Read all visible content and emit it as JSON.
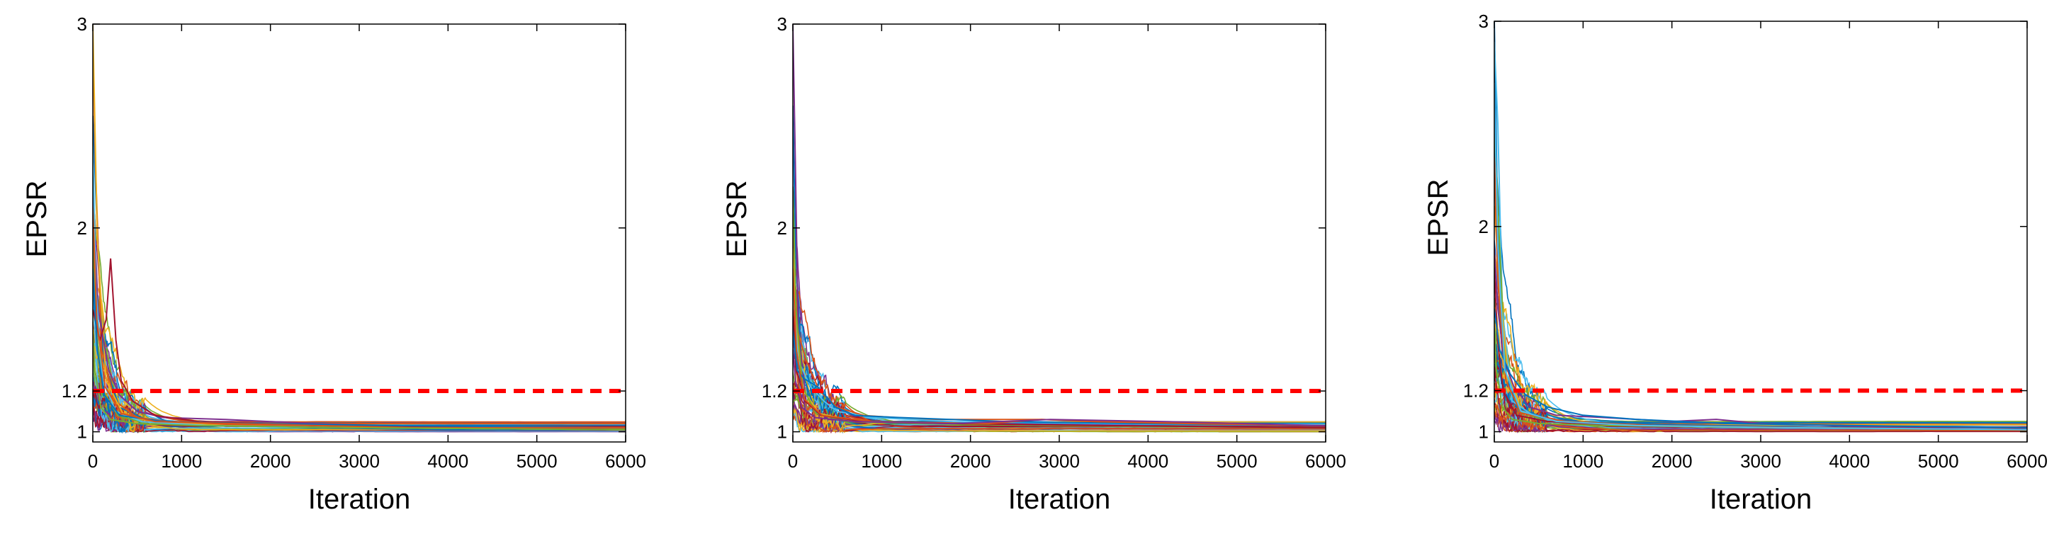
{
  "chart_data": [
    {
      "type": "line",
      "xlabel": "Iteration",
      "ylabel": "EPSR",
      "xlim": [
        0,
        6000
      ],
      "ylim": [
        0.95,
        3.0
      ],
      "xticks": [
        "0",
        "1000",
        "2000",
        "3000",
        "4000",
        "5000",
        "6000"
      ],
      "yticks": [
        "1",
        "1.2",
        "2",
        "3"
      ],
      "threshold": {
        "value": 1.2,
        "color": "#ff0000",
        "style": "dashed"
      },
      "grid": false,
      "series_note": "many overlapping chains converging toward 1",
      "seed": 11,
      "series": [
        {
          "color": "#0072bd",
          "x": [
            0,
            40,
            120,
            300,
            600,
            1200,
            2500,
            4000,
            6000
          ],
          "y": [
            2.55,
            2.1,
            1.35,
            1.12,
            1.06,
            1.04,
            1.02,
            1.01,
            1.01
          ]
        },
        {
          "color": "#d95319",
          "x": [
            0,
            30,
            100,
            250,
            500,
            1000,
            2000,
            4000,
            6000
          ],
          "y": [
            2.9,
            2.3,
            1.4,
            1.15,
            1.07,
            1.04,
            1.03,
            1.02,
            1.01
          ]
        },
        {
          "color": "#edb120",
          "x": [
            0,
            50,
            150,
            350,
            700,
            1500,
            3000,
            6000
          ],
          "y": [
            3.0,
            1.95,
            1.25,
            1.08,
            1.05,
            1.03,
            1.02,
            1.01
          ]
        },
        {
          "color": "#7e2f8e",
          "x": [
            0,
            60,
            180,
            300,
            500,
            800,
            1500,
            2500,
            4000,
            6000
          ],
          "y": [
            2.2,
            1.6,
            1.3,
            1.18,
            1.1,
            1.07,
            1.06,
            1.04,
            1.02,
            1.01
          ]
        },
        {
          "color": "#77ac30",
          "x": [
            0,
            40,
            120,
            280,
            600,
            1400,
            3000,
            6000
          ],
          "y": [
            2.0,
            1.5,
            1.2,
            1.08,
            1.04,
            1.03,
            1.02,
            1.01
          ]
        },
        {
          "color": "#4dbeee",
          "x": [
            0,
            35,
            110,
            260,
            550,
            1300,
            3000,
            6000
          ],
          "y": [
            2.4,
            1.7,
            1.25,
            1.1,
            1.05,
            1.03,
            1.02,
            1.01
          ]
        },
        {
          "color": "#a2142f",
          "x": [
            0,
            80,
            150,
            200,
            260,
            320,
            450,
            700,
            1200,
            2500,
            6000
          ],
          "y": [
            1.6,
            1.45,
            1.55,
            1.85,
            1.45,
            1.25,
            1.15,
            1.08,
            1.05,
            1.03,
            1.01
          ]
        },
        {
          "color": "#0072bd",
          "x": [
            0,
            50,
            130,
            300,
            800,
            1800,
            3500,
            6000
          ],
          "y": [
            1.8,
            1.4,
            1.18,
            1.08,
            1.05,
            1.04,
            1.03,
            1.02
          ]
        },
        {
          "color": "#d95319",
          "x": [
            0,
            45,
            140,
            320,
            700,
            1600,
            3600,
            6000
          ],
          "y": [
            2.1,
            1.55,
            1.22,
            1.09,
            1.05,
            1.04,
            1.02,
            1.02
          ]
        },
        {
          "color": "#77ac30",
          "x": [
            0,
            25,
            90,
            200,
            500,
            1200,
            3000,
            6000
          ],
          "y": [
            1.5,
            1.3,
            1.12,
            1.06,
            1.04,
            1.03,
            1.02,
            1.01
          ]
        }
      ]
    },
    {
      "type": "line",
      "xlabel": "Iteration",
      "ylabel": "EPSR",
      "xlim": [
        0,
        6000
      ],
      "ylim": [
        0.95,
        3.0
      ],
      "xticks": [
        "0",
        "1000",
        "2000",
        "3000",
        "4000",
        "5000",
        "6000"
      ],
      "yticks": [
        "1",
        "1.2",
        "2",
        "3"
      ],
      "threshold": {
        "value": 1.2,
        "color": "#ff0000",
        "style": "dashed"
      },
      "grid": false,
      "series_note": "many overlapping chains converging toward 1",
      "seed": 23,
      "series": [
        {
          "color": "#0072bd",
          "x": [
            0,
            30,
            100,
            250,
            600,
            1200,
            2500,
            4000,
            6000
          ],
          "y": [
            2.6,
            1.9,
            1.3,
            1.1,
            1.05,
            1.05,
            1.04,
            1.03,
            1.02
          ]
        },
        {
          "color": "#7e2f8e",
          "x": [
            0,
            25,
            60,
            150,
            400,
            900,
            2000,
            4000,
            6000
          ],
          "y": [
            3.0,
            2.4,
            1.5,
            1.15,
            1.06,
            1.05,
            1.04,
            1.03,
            1.02
          ]
        },
        {
          "color": "#d95319",
          "x": [
            0,
            50,
            150,
            300,
            500,
            800,
            1500,
            2800,
            4500,
            6000
          ],
          "y": [
            2.0,
            1.5,
            1.35,
            1.2,
            1.12,
            1.08,
            1.06,
            1.06,
            1.04,
            1.03
          ]
        },
        {
          "color": "#edb120",
          "x": [
            0,
            40,
            120,
            300,
            700,
            1500,
            3000,
            6000
          ],
          "y": [
            1.9,
            1.5,
            1.2,
            1.09,
            1.05,
            1.04,
            1.03,
            1.02
          ]
        },
        {
          "color": "#4dbeee",
          "x": [
            0,
            60,
            200,
            350,
            500,
            900,
            1800,
            3500,
            6000
          ],
          "y": [
            1.7,
            1.35,
            1.22,
            1.15,
            1.1,
            1.07,
            1.05,
            1.04,
            1.03
          ]
        },
        {
          "color": "#77ac30",
          "x": [
            0,
            35,
            110,
            260,
            600,
            1400,
            3000,
            6000
          ],
          "y": [
            2.2,
            1.6,
            1.22,
            1.09,
            1.05,
            1.04,
            1.03,
            1.02
          ]
        },
        {
          "color": "#a2142f",
          "x": [
            0,
            45,
            140,
            320,
            800,
            1800,
            3600,
            6000
          ],
          "y": [
            1.6,
            1.3,
            1.15,
            1.08,
            1.05,
            1.04,
            1.03,
            1.02
          ]
        },
        {
          "color": "#0072bd",
          "x": [
            0,
            50,
            130,
            280,
            480,
            700,
            1200,
            2400,
            4000,
            6000
          ],
          "y": [
            1.5,
            1.3,
            1.26,
            1.22,
            1.12,
            1.08,
            1.07,
            1.05,
            1.04,
            1.03
          ]
        },
        {
          "color": "#d95319",
          "x": [
            0,
            40,
            130,
            330,
            900,
            2200,
            2800,
            3400,
            4500,
            6000
          ],
          "y": [
            1.8,
            1.4,
            1.16,
            1.08,
            1.05,
            1.04,
            1.06,
            1.05,
            1.04,
            1.03
          ]
        },
        {
          "color": "#7e2f8e",
          "x": [
            0,
            30,
            100,
            250,
            700,
            1800,
            2900,
            4200,
            6000
          ],
          "y": [
            1.4,
            1.25,
            1.12,
            1.07,
            1.05,
            1.04,
            1.06,
            1.05,
            1.03
          ]
        }
      ]
    },
    {
      "type": "line",
      "xlabel": "Iteration",
      "ylabel": "EPSR",
      "xlim": [
        0,
        6000
      ],
      "ylim": [
        0.95,
        3.0
      ],
      "xticks": [
        "0",
        "1000",
        "2000",
        "3000",
        "4000",
        "5000",
        "6000"
      ],
      "yticks": [
        "1",
        "1.2",
        "2",
        "3"
      ],
      "threshold": {
        "value": 1.2,
        "color": "#ff0000",
        "style": "dashed"
      },
      "grid": false,
      "series_note": "many overlapping chains converging toward 1",
      "seed": 37,
      "series": [
        {
          "color": "#0072bd",
          "x": [
            0,
            30,
            100,
            250,
            600,
            1200,
            2500,
            4000,
            6000
          ],
          "y": [
            3.0,
            2.2,
            1.4,
            1.12,
            1.06,
            1.04,
            1.03,
            1.02,
            1.01
          ]
        },
        {
          "color": "#4dbeee",
          "x": [
            0,
            40,
            90,
            200,
            500,
            1100,
            2500,
            6000
          ],
          "y": [
            2.9,
            2.5,
            1.6,
            1.15,
            1.06,
            1.04,
            1.02,
            1.01
          ]
        },
        {
          "color": "#77ac30",
          "x": [
            0,
            50,
            120,
            280,
            600,
            1400,
            3000,
            6000
          ],
          "y": [
            2.5,
            2.0,
            1.35,
            1.1,
            1.05,
            1.03,
            1.02,
            1.01
          ]
        },
        {
          "color": "#edb120",
          "x": [
            0,
            60,
            150,
            300,
            700,
            1500,
            3000,
            6000
          ],
          "y": [
            2.1,
            1.7,
            1.3,
            1.1,
            1.05,
            1.03,
            1.02,
            1.01
          ]
        },
        {
          "color": "#7e2f8e",
          "x": [
            0,
            40,
            110,
            220,
            400,
            700,
            1200,
            2000,
            2500,
            3000,
            4500,
            6000
          ],
          "y": [
            1.9,
            1.6,
            1.35,
            1.22,
            1.12,
            1.08,
            1.07,
            1.05,
            1.06,
            1.04,
            1.02,
            1.01
          ]
        },
        {
          "color": "#a2142f",
          "x": [
            0,
            35,
            100,
            250,
            600,
            1300,
            3000,
            6000
          ],
          "y": [
            1.8,
            1.45,
            1.2,
            1.08,
            1.05,
            1.03,
            1.02,
            1.01
          ]
        },
        {
          "color": "#d95319",
          "x": [
            0,
            45,
            130,
            300,
            800,
            1800,
            3600,
            6000
          ],
          "y": [
            2.3,
            1.7,
            1.25,
            1.09,
            1.05,
            1.03,
            1.02,
            1.01
          ]
        },
        {
          "color": "#0072bd",
          "x": [
            0,
            60,
            180,
            350,
            600,
            1000,
            1600,
            2600,
            4000,
            6000
          ],
          "y": [
            1.6,
            1.4,
            1.28,
            1.18,
            1.12,
            1.08,
            1.06,
            1.04,
            1.03,
            1.02
          ]
        },
        {
          "color": "#77ac30",
          "x": [
            0,
            25,
            90,
            200,
            500,
            1200,
            3000,
            6000
          ],
          "y": [
            1.5,
            1.3,
            1.12,
            1.06,
            1.04,
            1.03,
            1.02,
            1.01
          ]
        },
        {
          "color": "#4dbeee",
          "x": [
            0,
            40,
            120,
            300,
            700,
            1600,
            3200,
            6000
          ],
          "y": [
            2.7,
            1.9,
            1.3,
            1.1,
            1.05,
            1.03,
            1.02,
            1.01
          ]
        }
      ]
    }
  ]
}
